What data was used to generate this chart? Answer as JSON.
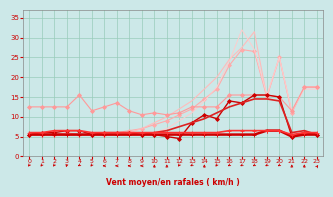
{
  "x": [
    0,
    1,
    2,
    3,
    4,
    5,
    6,
    7,
    8,
    9,
    10,
    11,
    12,
    13,
    14,
    15,
    16,
    17,
    18,
    19,
    20,
    21,
    22,
    23
  ],
  "series": [
    {
      "name": "upper_pink_max",
      "color": "#ffaaaa",
      "linewidth": 0.8,
      "marker": "D",
      "markersize": 2.0,
      "values": [
        5.5,
        5.5,
        5.5,
        6.0,
        5.5,
        5.5,
        5.5,
        6.0,
        6.5,
        7.0,
        8.0,
        9.0,
        10.5,
        12.0,
        14.5,
        17.0,
        23.0,
        27.0,
        26.5,
        15.0,
        25.0,
        11.0,
        17.5,
        17.5
      ]
    },
    {
      "name": "upper_pink_line",
      "color": "#ffbbbb",
      "linewidth": 0.8,
      "marker": null,
      "markersize": 0,
      "values": [
        5.5,
        5.5,
        5.5,
        5.5,
        5.5,
        5.5,
        5.5,
        5.5,
        6.0,
        7.0,
        8.5,
        10.0,
        12.0,
        14.0,
        17.0,
        20.0,
        24.5,
        27.5,
        31.5,
        15.0,
        25.0,
        11.0,
        17.5,
        17.5
      ]
    },
    {
      "name": "top_pink_sparse",
      "color": "#ffcccc",
      "linewidth": 0.7,
      "marker": null,
      "markersize": 0,
      "values": [
        5.5,
        5.5,
        5.5,
        5.5,
        5.5,
        5.5,
        5.5,
        5.5,
        5.5,
        5.5,
        6.0,
        7.0,
        9.0,
        11.0,
        14.0,
        17.5,
        24.0,
        32.0,
        27.0,
        15.5,
        25.0,
        11.5,
        17.0,
        17.0
      ]
    },
    {
      "name": "mid_pink",
      "color": "#ff9999",
      "linewidth": 0.8,
      "marker": "D",
      "markersize": 2.0,
      "values": [
        12.5,
        12.5,
        12.5,
        12.5,
        15.5,
        11.5,
        12.5,
        13.5,
        11.5,
        10.5,
        11.0,
        10.5,
        11.0,
        12.5,
        12.5,
        12.5,
        15.5,
        15.5,
        15.5,
        15.5,
        15.0,
        11.5,
        17.5,
        17.5
      ]
    },
    {
      "name": "wind_mean_marked",
      "color": "#cc0000",
      "linewidth": 1.0,
      "marker": "D",
      "markersize": 2.0,
      "values": [
        5.5,
        6.0,
        6.0,
        6.5,
        6.5,
        5.5,
        6.0,
        6.0,
        6.0,
        5.5,
        5.5,
        5.0,
        4.5,
        8.5,
        10.5,
        9.5,
        14.0,
        13.5,
        15.5,
        15.5,
        15.0,
        5.0,
        6.0,
        5.5
      ]
    },
    {
      "name": "wind_trend",
      "color": "#dd2222",
      "linewidth": 1.2,
      "marker": null,
      "markersize": 0,
      "values": [
        5.5,
        5.5,
        5.5,
        5.5,
        5.5,
        5.5,
        5.5,
        5.5,
        5.5,
        5.5,
        6.0,
        6.5,
        7.5,
        8.5,
        9.5,
        11.0,
        12.5,
        13.5,
        14.5,
        14.5,
        14.0,
        6.0,
        6.5,
        5.5
      ]
    },
    {
      "name": "base_flat_red",
      "color": "#cc0000",
      "linewidth": 1.8,
      "marker": "+",
      "markersize": 3.0,
      "values": [
        5.5,
        5.5,
        5.5,
        5.5,
        5.5,
        5.5,
        5.5,
        5.5,
        5.5,
        5.5,
        5.5,
        5.5,
        5.5,
        5.5,
        5.5,
        5.5,
        5.5,
        5.5,
        5.5,
        6.5,
        6.5,
        5.0,
        5.5,
        5.5
      ]
    },
    {
      "name": "base_flat_red2",
      "color": "#ff3333",
      "linewidth": 1.2,
      "marker": "+",
      "markersize": 3.0,
      "values": [
        6.0,
        6.0,
        6.5,
        6.5,
        6.5,
        6.0,
        6.0,
        6.0,
        6.0,
        6.0,
        6.0,
        6.0,
        6.0,
        6.0,
        6.0,
        6.0,
        6.5,
        6.5,
        6.5,
        6.5,
        6.5,
        5.5,
        6.0,
        6.0
      ]
    }
  ],
  "xlabel": "Vent moyen/en rafales ( km/h )",
  "xlim": [
    -0.5,
    23.5
  ],
  "ylim": [
    0,
    37
  ],
  "xticks": [
    0,
    1,
    2,
    3,
    4,
    5,
    6,
    7,
    8,
    9,
    10,
    11,
    12,
    13,
    14,
    15,
    16,
    17,
    18,
    19,
    20,
    21,
    22,
    23
  ],
  "yticks": [
    0,
    5,
    10,
    15,
    20,
    25,
    30,
    35
  ],
  "background_color": "#cce8e8",
  "grid_color": "#99ccbb",
  "tick_color": "#cc0000",
  "label_color": "#cc0000"
}
